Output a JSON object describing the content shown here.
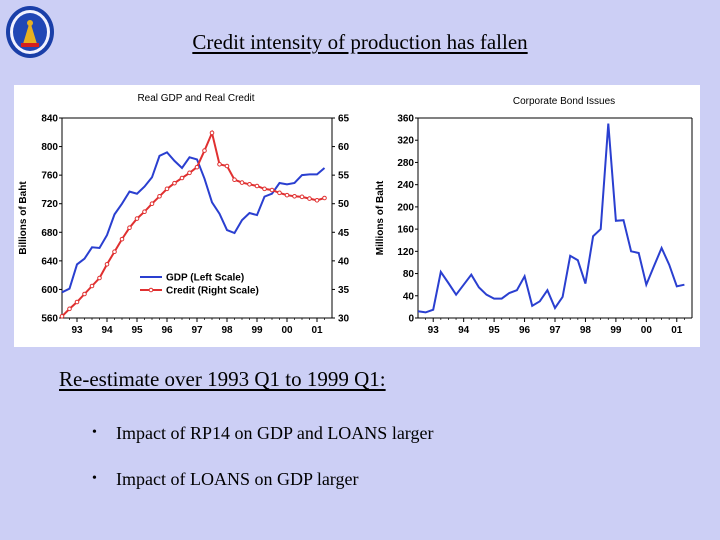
{
  "slide": {
    "title": "Credit intensity of production has fallen",
    "subheading": "Re-estimate over 1993 Q1 to 1999 Q1:",
    "bullets": [
      "Impact of RP14 on GDP and LOANS larger",
      "Impact of LOANS on GDP larger"
    ],
    "bullet_glyph": "•",
    "logo_icon": "central-bank-seal",
    "colors": {
      "background": "#cccff5",
      "gdp": "#2a3fd0",
      "credit": "#e03030",
      "bonds": "#2a3fd0"
    }
  },
  "chart_data": [
    {
      "type": "line",
      "title": "Real GDP and Real Credit",
      "ylabel": "Billions of Baht",
      "x_ticks": [
        "93",
        "94",
        "95",
        "96",
        "97",
        "98",
        "99",
        "00",
        "01"
      ],
      "x_range": [
        1992.5,
        2001.5
      ],
      "y_left": {
        "range": [
          560,
          840
        ],
        "ticks": [
          560,
          600,
          640,
          680,
          720,
          760,
          800,
          840
        ]
      },
      "y_right": {
        "range": [
          30,
          65
        ],
        "ticks": [
          30,
          35,
          40,
          45,
          50,
          55,
          60,
          65
        ]
      },
      "legend_placement": "bottom-center",
      "series": [
        {
          "name": "GDP (Left Scale)",
          "axis": "left",
          "color": "#2a3fd0",
          "markers": false,
          "x": [
            1992.5,
            1992.75,
            1993.0,
            1993.25,
            1993.5,
            1993.75,
            1994.0,
            1994.25,
            1994.5,
            1994.75,
            1995.0,
            1995.25,
            1995.5,
            1995.75,
            1996.0,
            1996.25,
            1996.5,
            1996.75,
            1997.0,
            1997.25,
            1997.5,
            1997.75,
            1998.0,
            1998.25,
            1998.5,
            1998.75,
            1999.0,
            1999.25,
            1999.5,
            1999.75,
            2000.0,
            2000.25,
            2000.5,
            2000.75,
            2001.0,
            2001.25
          ],
          "y": [
            596,
            601,
            635,
            643,
            659,
            658,
            676,
            705,
            720,
            737,
            734,
            744,
            757,
            787,
            792,
            780,
            770,
            785,
            782,
            755,
            722,
            706,
            683,
            679,
            697,
            707,
            704,
            730,
            734,
            749,
            747,
            749,
            760,
            761,
            761,
            770
          ]
        },
        {
          "name": "Credit (Right Scale)",
          "axis": "right",
          "color": "#e03030",
          "markers": true,
          "x": [
            1992.5,
            1992.75,
            1993.0,
            1993.25,
            1993.5,
            1993.75,
            1994.0,
            1994.25,
            1994.5,
            1994.75,
            1995.0,
            1995.25,
            1995.5,
            1995.75,
            1996.0,
            1996.25,
            1996.5,
            1996.75,
            1997.0,
            1997.25,
            1997.5,
            1997.75,
            1998.0,
            1998.25,
            1998.5,
            1998.75,
            1999.0,
            1999.25,
            1999.5,
            1999.75,
            2000.0,
            2000.25,
            2000.5,
            2000.75,
            2001.0,
            2001.25
          ],
          "y": [
            30.3,
            31.6,
            32.8,
            34.2,
            35.6,
            37.0,
            39.4,
            41.6,
            43.8,
            45.8,
            47.4,
            48.6,
            50.0,
            51.3,
            52.6,
            53.6,
            54.5,
            55.4,
            56.4,
            59.3,
            62.4,
            56.9,
            56.6,
            54.2,
            53.7,
            53.4,
            53.1,
            52.6,
            52.4,
            51.9,
            51.5,
            51.3,
            51.2,
            50.9,
            50.6,
            51.0
          ]
        }
      ]
    },
    {
      "type": "line",
      "title": "Corporate Bond Issues",
      "ylabel": "Millions of Baht",
      "x_ticks": [
        "93",
        "94",
        "95",
        "96",
        "97",
        "98",
        "99",
        "00",
        "01"
      ],
      "x_range": [
        1992.5,
        2001.5
      ],
      "ylim": [
        0,
        360
      ],
      "y_ticks": [
        0,
        40,
        80,
        120,
        160,
        200,
        240,
        280,
        320,
        360
      ],
      "series": [
        {
          "color": "#2a3fd0",
          "x": [
            1992.5,
            1992.75,
            1993.0,
            1993.25,
            1993.5,
            1993.75,
            1994.0,
            1994.25,
            1994.5,
            1994.75,
            1995.0,
            1995.25,
            1995.5,
            1995.75,
            1996.0,
            1996.25,
            1996.5,
            1996.75,
            1997.0,
            1997.25,
            1997.5,
            1997.75,
            1998.0,
            1998.25,
            1998.5,
            1998.75,
            1999.0,
            1999.25,
            1999.5,
            1999.75,
            2000.0,
            2000.25,
            2000.5,
            2000.75,
            2001.0,
            2001.25
          ],
          "y": [
            12,
            10,
            15,
            83,
            63,
            42,
            60,
            78,
            55,
            42,
            35,
            35,
            45,
            50,
            75,
            22,
            30,
            50,
            18,
            38,
            112,
            104,
            62,
            147,
            160,
            350,
            175,
            176,
            120,
            117,
            60,
            93,
            126,
            96,
            57,
            60
          ]
        }
      ]
    }
  ]
}
